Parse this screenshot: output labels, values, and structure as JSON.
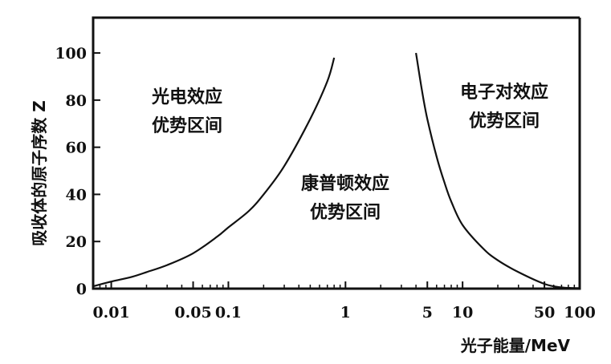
{
  "chart_data": {
    "type": "line",
    "title": "",
    "xlabel": "光子能量/MeV",
    "ylabel": "吸收体的原子序数 Z",
    "x_scale": "log",
    "xlim": [
      0.007,
      100
    ],
    "ylim": [
      0,
      115
    ],
    "x_ticks": [
      {
        "value": 0.01,
        "label": "0.01"
      },
      {
        "value": 0.05,
        "label": "0.05"
      },
      {
        "value": 0.1,
        "label": "0.1"
      },
      {
        "value": 1,
        "label": "1"
      },
      {
        "value": 5,
        "label": "5"
      },
      {
        "value": 10,
        "label": "10"
      },
      {
        "value": 50,
        "label": "50"
      },
      {
        "value": 100,
        "label": "100"
      }
    ],
    "y_ticks": [
      {
        "value": 0,
        "label": "0"
      },
      {
        "value": 20,
        "label": "20"
      },
      {
        "value": 40,
        "label": "40"
      },
      {
        "value": 60,
        "label": "60"
      },
      {
        "value": 80,
        "label": "80"
      },
      {
        "value": 100,
        "label": "100"
      }
    ],
    "series": [
      {
        "x": [
          0.007,
          0.01,
          0.015,
          0.02,
          0.03,
          0.05,
          0.08,
          0.1,
          0.15,
          0.2,
          0.3,
          0.5,
          0.7,
          0.8
        ],
        "y": [
          1,
          3,
          5,
          7,
          10,
          15,
          22,
          26,
          33,
          40,
          52,
          72,
          88,
          98
        ]
      },
      {
        "x": [
          4,
          4.5,
          5,
          6,
          7,
          8,
          10,
          15,
          20,
          30,
          50,
          70,
          100
        ],
        "y": [
          100,
          84,
          72,
          56,
          45,
          37,
          27,
          17,
          12,
          7,
          2,
          0.5,
          0.2
        ]
      }
    ],
    "annotations": [
      {
        "lines": [
          "光电效应",
          "优势区间"
        ]
      },
      {
        "lines": [
          "康普顿效应",
          "优势区间"
        ]
      },
      {
        "lines": [
          "电子对效应",
          "优势区间"
        ]
      }
    ],
    "grid": false,
    "legend": "none"
  }
}
